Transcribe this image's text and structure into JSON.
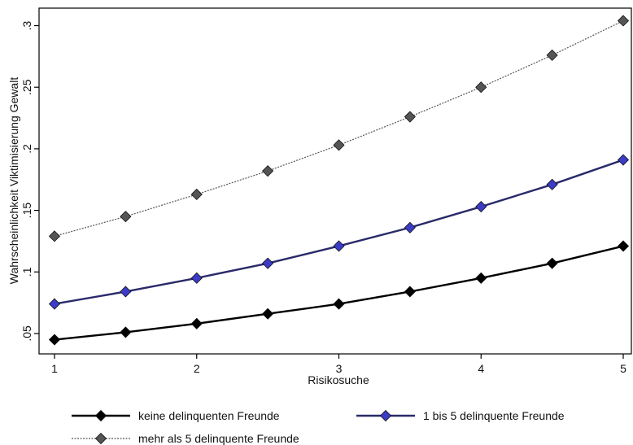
{
  "chart_data": {
    "type": "line",
    "xlabel": "Risikosuche",
    "ylabel": "Wahrscheinlichkeit Viktimisierung Gewalt",
    "xlim": [
      1,
      5
    ],
    "ylim": [
      0.045,
      0.31
    ],
    "x_ticks": [
      {
        "value": 1,
        "label": "1"
      },
      {
        "value": 2,
        "label": "2"
      },
      {
        "value": 3,
        "label": "3"
      },
      {
        "value": 4,
        "label": "4"
      },
      {
        "value": 5,
        "label": "5"
      }
    ],
    "y_ticks": [
      {
        "value": 0.05,
        "label": ".05"
      },
      {
        "value": 0.1,
        "label": ".1"
      },
      {
        "value": 0.15,
        "label": ".15"
      },
      {
        "value": 0.2,
        "label": ".2"
      },
      {
        "value": 0.25,
        "label": ".25"
      },
      {
        "value": 0.3,
        "label": ".3"
      }
    ],
    "grid": false,
    "legend_position": "bottom",
    "x": [
      1,
      1.5,
      2,
      2.5,
      3,
      3.5,
      4,
      4.5,
      5
    ],
    "series": [
      {
        "name": "keine delinquenten Freunde",
        "color": "#000000",
        "marker_color": "#000000",
        "line_style": "solid",
        "values": [
          0.045,
          0.051,
          0.058,
          0.066,
          0.074,
          0.084,
          0.095,
          0.107,
          0.121
        ]
      },
      {
        "name": "1 bis 5 delinquente Freunde",
        "color": "#2a2a6a",
        "marker_color": "#3b3bc8",
        "line_style": "solid",
        "values": [
          0.074,
          0.084,
          0.095,
          0.107,
          0.121,
          0.136,
          0.153,
          0.171,
          0.191
        ]
      },
      {
        "name": "mehr als 5 delinquente Freunde",
        "color": "#555555",
        "marker_color": "#555555",
        "line_style": "dotted",
        "values": [
          0.129,
          0.145,
          0.163,
          0.182,
          0.203,
          0.226,
          0.25,
          0.276,
          0.304
        ]
      }
    ]
  }
}
